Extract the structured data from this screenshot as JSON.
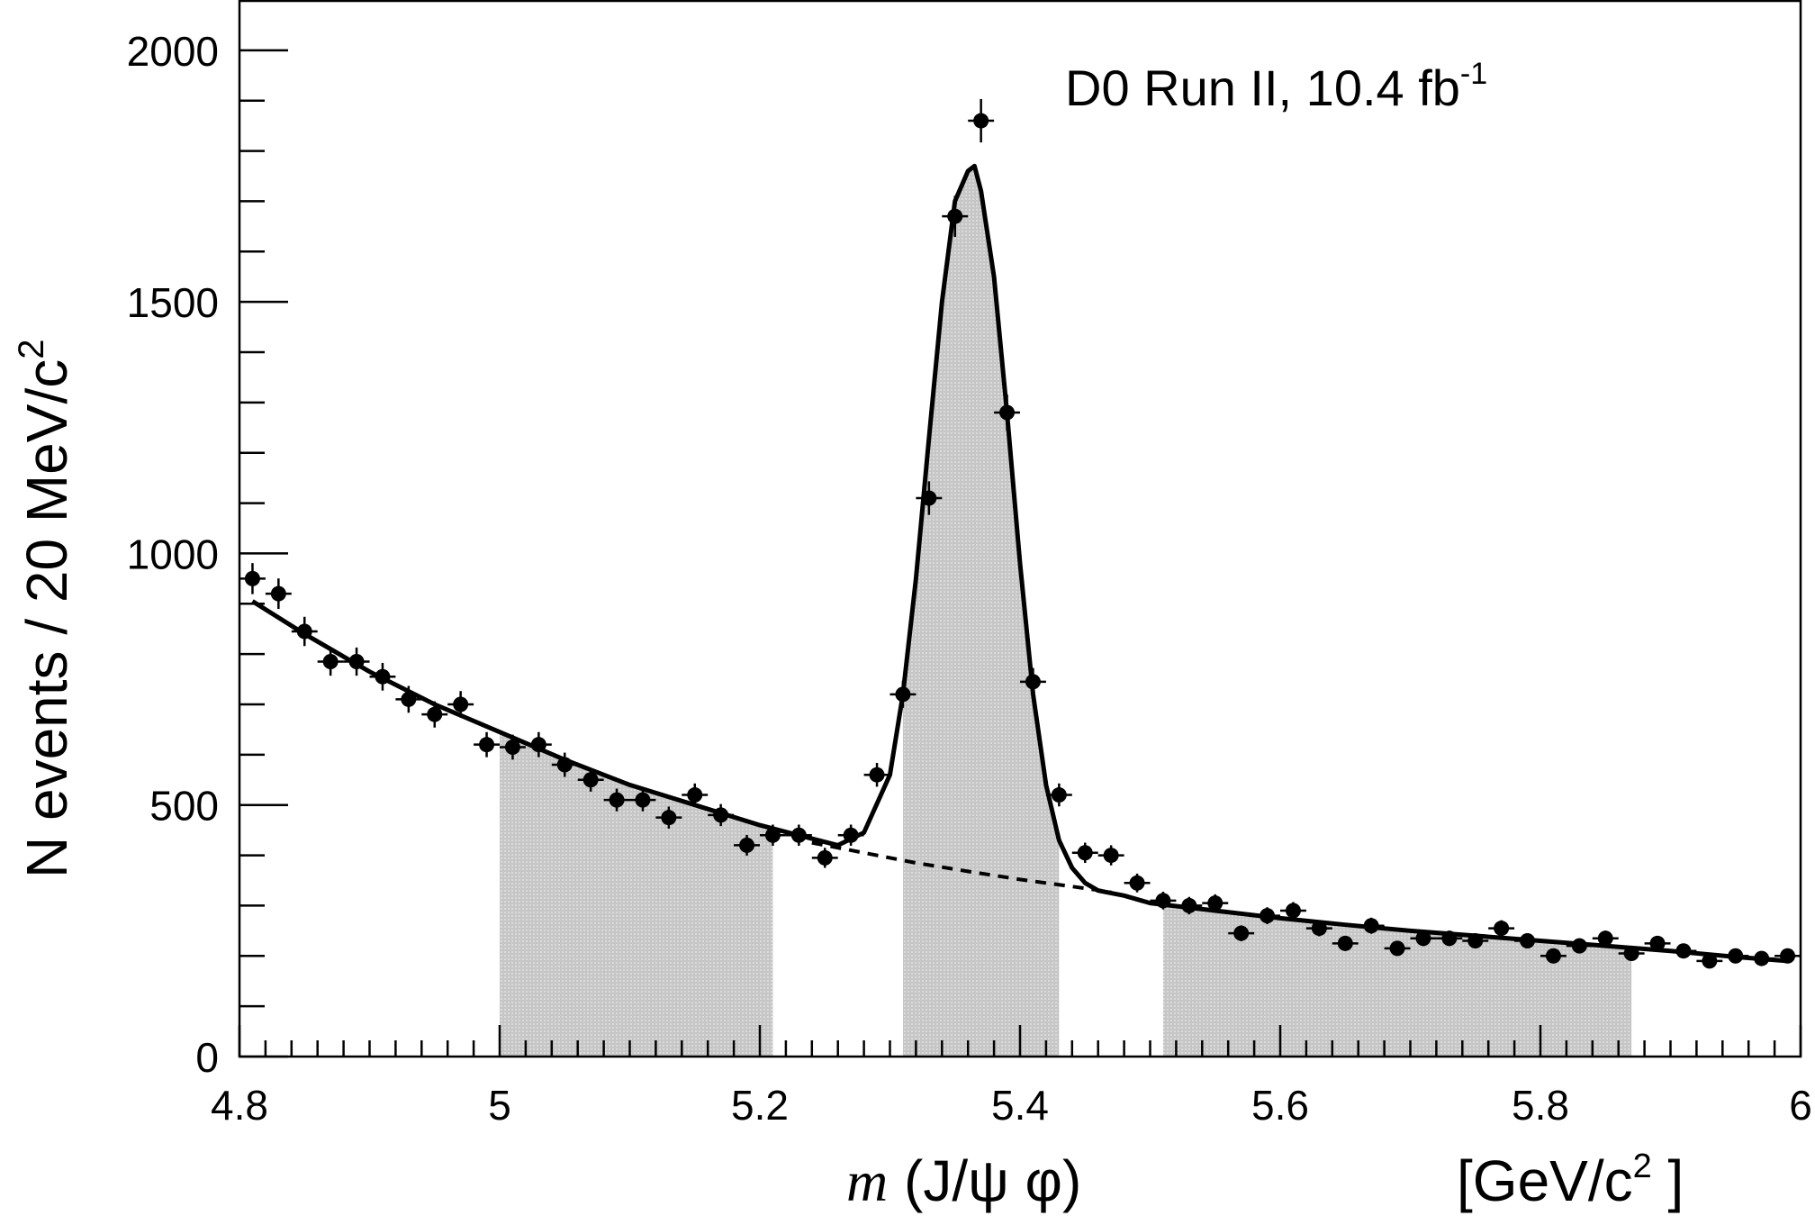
{
  "chart_data": {
    "type": "scatter",
    "annotation": {
      "main": "D0 Run II, 10.4 fb",
      "sup": "-1"
    },
    "ylabel": {
      "main": "N events / 20 MeV/c",
      "sup": "2"
    },
    "xlabel": {
      "main": "m",
      "rest": " (J/ψ  φ)"
    },
    "xunits": {
      "pre": "[GeV/c",
      "sup": "2",
      "post": " ]"
    },
    "xlim": [
      4.8,
      6.0
    ],
    "ylim": [
      0,
      2100
    ],
    "xticks": [
      "4.8",
      "5",
      "5.2",
      "5.4",
      "5.6",
      "5.8",
      "6"
    ],
    "yticks": [
      "0",
      "500",
      "1000",
      "1500",
      "2000"
    ],
    "bin_width": 0.02,
    "grid": false,
    "data_points": {
      "x": [
        4.81,
        4.83,
        4.85,
        4.87,
        4.89,
        4.91,
        4.93,
        4.95,
        4.97,
        4.99,
        5.01,
        5.03,
        5.05,
        5.07,
        5.09,
        5.11,
        5.13,
        5.15,
        5.17,
        5.19,
        5.21,
        5.23,
        5.25,
        5.27,
        5.29,
        5.31,
        5.33,
        5.35,
        5.37,
        5.39,
        5.41,
        5.43,
        5.45,
        5.47,
        5.49,
        5.51,
        5.53,
        5.55,
        5.57,
        5.59,
        5.61,
        5.63,
        5.65,
        5.67,
        5.69,
        5.71,
        5.73,
        5.75,
        5.77,
        5.79,
        5.81,
        5.83,
        5.85,
        5.87,
        5.89,
        5.91,
        5.93,
        5.95,
        5.97,
        5.99
      ],
      "y": [
        950,
        920,
        845,
        785,
        785,
        755,
        710,
        680,
        700,
        620,
        615,
        620,
        580,
        550,
        510,
        510,
        475,
        520,
        480,
        420,
        440,
        440,
        395,
        440,
        560,
        720,
        1110,
        1670,
        1860,
        1280,
        745,
        520,
        405,
        400,
        345,
        310,
        300,
        305,
        245,
        280,
        290,
        255,
        225,
        260,
        215,
        235,
        235,
        230,
        255,
        230,
        200,
        220,
        235,
        205,
        225,
        210,
        190,
        200,
        195,
        200
      ]
    },
    "fit_total": {
      "x": [
        4.81,
        4.85,
        4.9,
        4.95,
        5.0,
        5.05,
        5.1,
        5.15,
        5.2,
        5.24,
        5.26,
        5.28,
        5.3,
        5.31,
        5.32,
        5.33,
        5.34,
        5.35,
        5.36,
        5.365,
        5.37,
        5.38,
        5.39,
        5.4,
        5.41,
        5.42,
        5.43,
        5.44,
        5.45,
        5.46,
        5.48,
        5.5,
        5.55,
        5.6,
        5.65,
        5.7,
        5.75,
        5.8,
        5.85,
        5.9,
        5.95,
        5.99
      ],
      "y": [
        905,
        840,
        765,
        700,
        645,
        590,
        540,
        500,
        460,
        433,
        420,
        445,
        560,
        720,
        950,
        1230,
        1500,
        1700,
        1760,
        1770,
        1720,
        1550,
        1280,
        980,
        720,
        540,
        430,
        375,
        345,
        330,
        320,
        305,
        290,
        275,
        262,
        250,
        240,
        230,
        220,
        210,
        198,
        190
      ]
    },
    "background_dashed": {
      "x": [
        5.24,
        5.28,
        5.32,
        5.36,
        5.4,
        5.44,
        5.47
      ],
      "y": [
        425,
        405,
        385,
        368,
        352,
        338,
        327
      ]
    },
    "shaded_regions": [
      [
        5.0,
        5.21
      ],
      [
        5.31,
        5.43
      ],
      [
        5.51,
        5.87
      ]
    ]
  }
}
